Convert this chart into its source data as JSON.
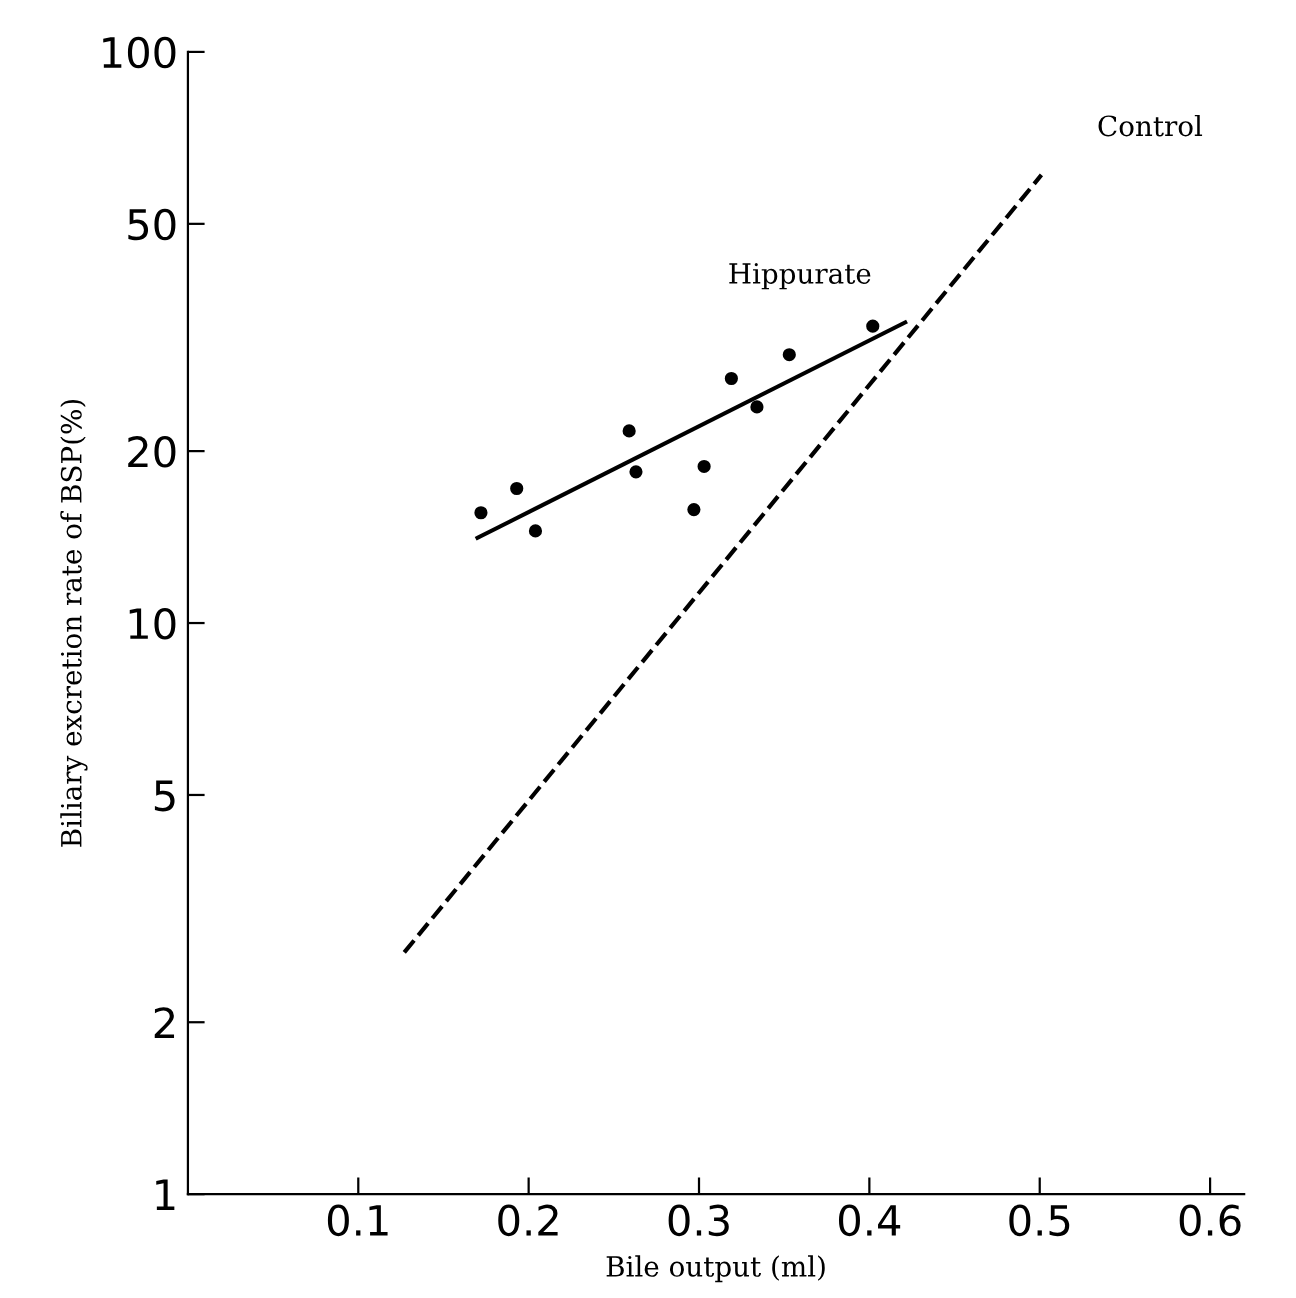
{
  "chart_data": {
    "type": "scatter",
    "xlabel": "Bile output (ml)",
    "ylabel": "Biliary excretion rate of BSP(%)",
    "series": [
      {
        "color": "#000000",
        "marker": "circle",
        "x": [
          0.172,
          0.193,
          0.204,
          0.259,
          0.263,
          0.297,
          0.303,
          0.319,
          0.334,
          0.353,
          0.402
        ],
        "values": [
          15.6,
          17.2,
          14.5,
          21.7,
          18.4,
          15.8,
          18.8,
          26.8,
          23.9,
          29.5,
          33.1
        ]
      },
      {
        "type": "line",
        "name": "Hippurate",
        "color": "#000000",
        "line_style": "solid",
        "x": [
          0.17,
          0.421
        ],
        "values": [
          14.1,
          33.6
        ]
      },
      {
        "type": "line",
        "name": "Control",
        "color": "#000000",
        "line_style": "dashed",
        "x": [
          0.127,
          0.501
        ],
        "values": [
          2.65,
          60.9
        ]
      }
    ],
    "log": "y",
    "xlim": [
      0,
      0.62
    ],
    "ylim": [
      1,
      100
    ],
    "xticks": [
      0.1,
      0.2,
      0.3,
      0.4,
      0.5,
      0.6
    ],
    "yticks": [
      1,
      2,
      5,
      10,
      20,
      50,
      100
    ],
    "grid": false,
    "legend": false
  }
}
